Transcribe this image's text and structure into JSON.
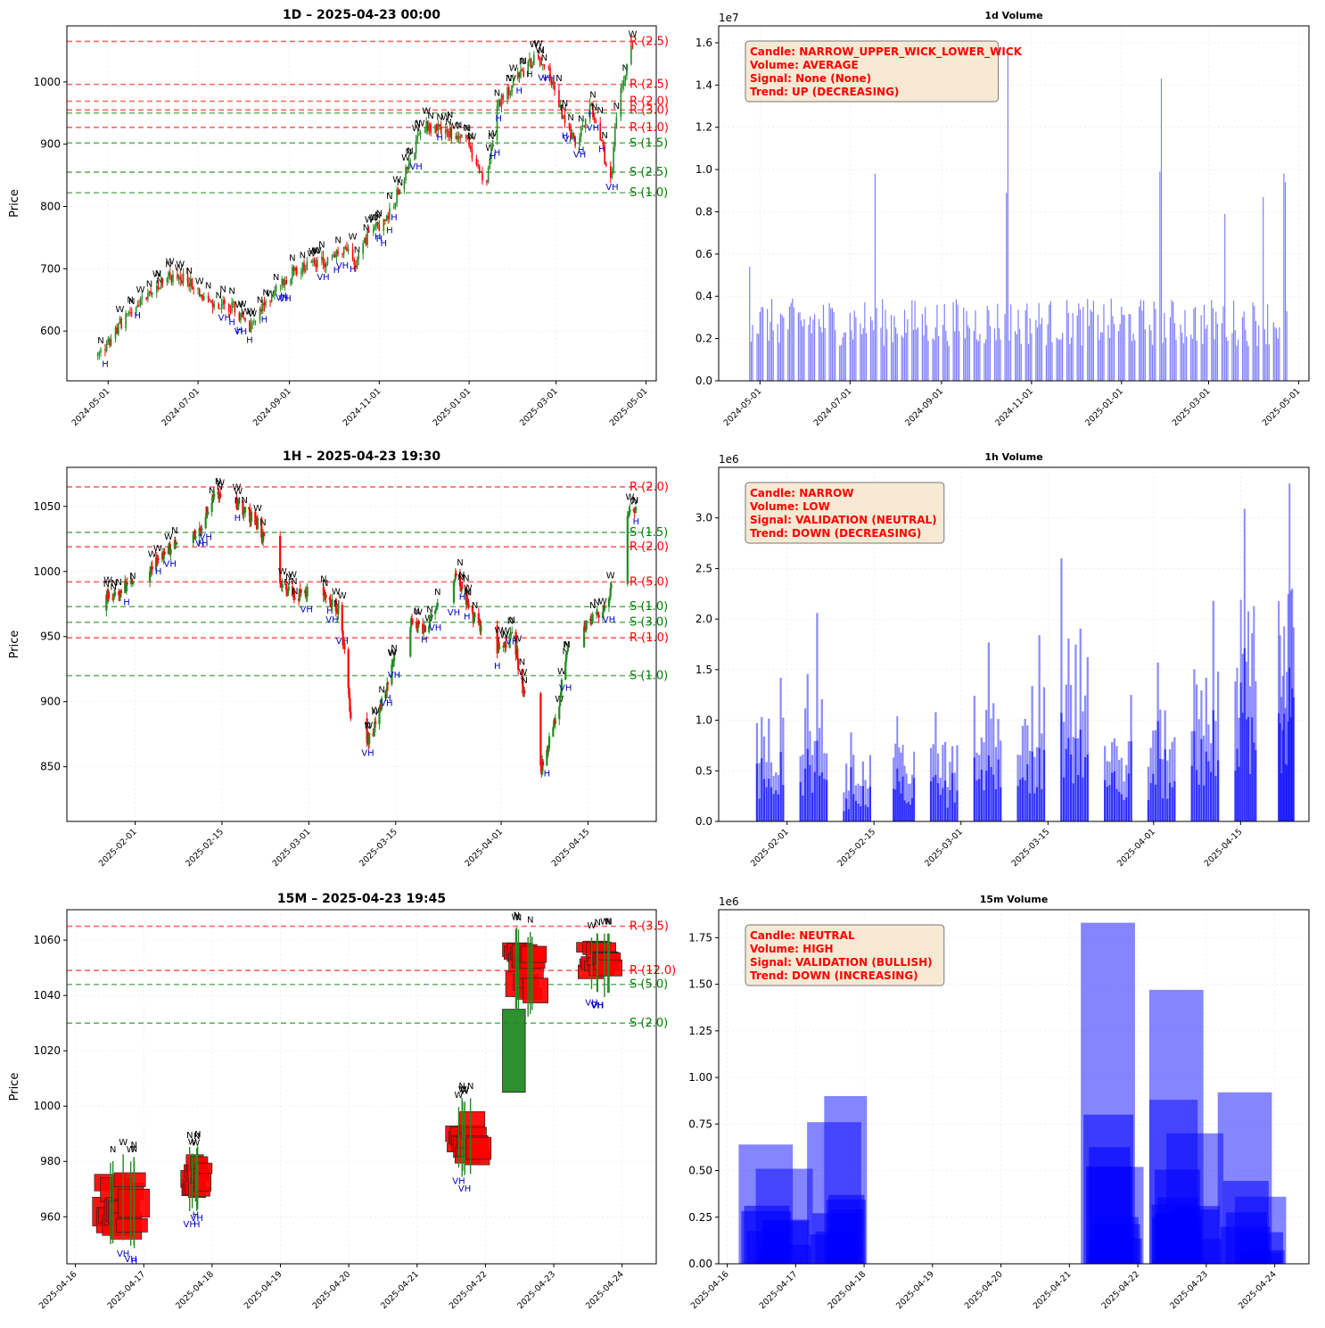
{
  "colors": {
    "up": "#228b22",
    "down": "#ff0000",
    "volume": "#0000ff",
    "resistance": "#ff0000",
    "support": "#008000",
    "label_w": "#000000",
    "label_h": "#0000cc",
    "infobox_bg": "#f7e9d3",
    "infobox_text": "#ff0000"
  },
  "chart_data": [
    {
      "type": "candlestick",
      "title": "1D – 2025-04-23 00:00",
      "ylabel": "Price",
      "ylim": [
        520,
        1090
      ],
      "xlim": [
        "2024-04-03",
        "2025-05-08"
      ],
      "yticks": [
        "600",
        "700",
        "800",
        "900",
        "1000"
      ],
      "xticks": [
        "2024-05-01",
        "2024-07-01",
        "2024-09-01",
        "2024-11-01",
        "2025-01-01",
        "2025-03-01",
        "2025-05-01"
      ],
      "price_path": {
        "dates": [
          "2024-04-24",
          "2024-05-01",
          "2024-05-10",
          "2024-05-25",
          "2024-06-10",
          "2024-06-25",
          "2024-07-10",
          "2024-07-25",
          "2024-08-05",
          "2024-08-20",
          "2024-09-05",
          "2024-09-25",
          "2024-10-10",
          "2024-10-15",
          "2024-10-25",
          "2024-11-05",
          "2024-11-20",
          "2024-12-01",
          "2024-12-15",
          "2024-12-30",
          "2025-01-05",
          "2025-01-13",
          "2025-01-20",
          "2025-02-01",
          "2025-02-15",
          "2025-02-25",
          "2025-03-05",
          "2025-03-15",
          "2025-03-25",
          "2025-04-07",
          "2025-04-12",
          "2025-04-22"
        ],
        "close": [
          560,
          580,
          615,
          650,
          690,
          680,
          640,
          640,
          600,
          660,
          700,
          710,
          730,
          700,
          760,
          775,
          860,
          930,
          920,
          910,
          870,
          840,
          960,
          1000,
          1040,
          1010,
          950,
          900,
          960,
          840,
          970,
          1060
        ]
      },
      "levels": [
        {
          "label": "R (2.5)",
          "price": 1065,
          "kind": "R"
        },
        {
          "label": "R (2.5)",
          "price": 996,
          "kind": "R"
        },
        {
          "label": "R (2.0)",
          "price": 969,
          "kind": "R"
        },
        {
          "label": "R (3.0)",
          "price": 955,
          "kind": "R"
        },
        {
          "label": "",
          "price": 950,
          "kind": "S"
        },
        {
          "label": "R (1.0)",
          "price": 927,
          "kind": "R"
        },
        {
          "label": "S (1.5)",
          "price": 902,
          "kind": "S"
        },
        {
          "label": "S (2.5)",
          "price": 855,
          "kind": "S"
        },
        {
          "label": "S (1.0)",
          "price": 822,
          "kind": "S"
        }
      ]
    },
    {
      "type": "bar",
      "title": "1d Volume",
      "scale_label": "1e7",
      "ylim": [
        0,
        1.68
      ],
      "yticks": [
        "0.0",
        "0.2",
        "0.4",
        "0.6",
        "0.8",
        "1.0",
        "1.2",
        "1.4",
        "1.6"
      ],
      "xlim": [
        "2024-04-03",
        "2025-05-08"
      ],
      "xticks": [
        "2024-05-01",
        "2024-07-01",
        "2024-09-01",
        "2024-11-01",
        "2025-01-01",
        "2025-03-01",
        "2025-05-01"
      ],
      "range": [
        "2024-04-24",
        "2025-04-23"
      ],
      "base_level": 0.3,
      "spikes": [
        {
          "date": "2024-04-24",
          "value": 0.54
        },
        {
          "date": "2024-07-18",
          "value": 0.98
        },
        {
          "date": "2024-10-15",
          "value": 0.89
        },
        {
          "date": "2024-10-16",
          "value": 1.56
        },
        {
          "date": "2025-01-27",
          "value": 0.99
        },
        {
          "date": "2025-01-28",
          "value": 1.43
        },
        {
          "date": "2025-03-12",
          "value": 0.79
        },
        {
          "date": "2025-04-07",
          "value": 0.87
        },
        {
          "date": "2025-04-21",
          "value": 0.98
        },
        {
          "date": "2025-04-22",
          "value": 0.94
        }
      ],
      "infobox": [
        "Candle: NARROW_UPPER_WICK_LOWER_WICK",
        "Volume: AVERAGE",
        "Signal: None (None)",
        "Trend: UP (DECREASING)"
      ]
    },
    {
      "type": "candlestick",
      "title": "1H – 2025-04-23 19:30",
      "ylabel": "Price",
      "ylim": [
        808,
        1080
      ],
      "xlim": [
        "2025-01-21",
        "2025-04-26"
      ],
      "yticks": [
        "850",
        "900",
        "950",
        "1000",
        "1050"
      ],
      "xticks": [
        "2025-02-01",
        "2025-02-15",
        "2025-03-01",
        "2025-03-15",
        "2025-04-01",
        "2025-04-15"
      ],
      "price_path": {
        "dates": [
          "2025-01-25",
          "2025-01-29",
          "2025-02-03",
          "2025-02-07",
          "2025-02-11",
          "2025-02-14",
          "2025-02-18",
          "2025-02-21",
          "2025-02-24",
          "2025-02-27",
          "2025-03-02",
          "2025-03-06",
          "2025-03-08",
          "2025-03-11",
          "2025-03-14",
          "2025-03-17",
          "2025-03-20",
          "2025-03-24",
          "2025-03-27",
          "2025-03-31",
          "2025-04-03",
          "2025-04-07",
          "2025-04-10",
          "2025-04-12",
          "2025-04-15",
          "2025-04-18",
          "2025-04-22",
          "2025-04-23"
        ],
        "close": [
          970,
          985,
          1000,
          1020,
          1030,
          1060,
          1050,
          1035,
          990,
          980,
          990,
          970,
          880,
          870,
          920,
          960,
          955,
          1000,
          970,
          940,
          950,
          840,
          890,
          950,
          960,
          975,
          1050,
          1045
        ]
      },
      "levels": [
        {
          "label": "R (2.0)",
          "price": 1065,
          "kind": "R"
        },
        {
          "label": "S (1.5)",
          "price": 1030,
          "kind": "S"
        },
        {
          "label": "R (2.0)",
          "price": 1019,
          "kind": "R"
        },
        {
          "label": "R (5.0)",
          "price": 992,
          "kind": "R"
        },
        {
          "label": "S (1.0)",
          "price": 973,
          "kind": "S"
        },
        {
          "label": "S (3.0)",
          "price": 961,
          "kind": "S"
        },
        {
          "label": "R (1.0)",
          "price": 949,
          "kind": "R"
        },
        {
          "label": "S (1.0)",
          "price": 920,
          "kind": "S"
        }
      ]
    },
    {
      "type": "bar",
      "title": "1h Volume",
      "scale_label": "1e6",
      "ylim": [
        0,
        3.5
      ],
      "yticks": [
        "0.0",
        "0.5",
        "1.0",
        "1.5",
        "2.0",
        "2.5",
        "3.0"
      ],
      "xlim": [
        "2025-01-21",
        "2025-04-26"
      ],
      "xticks": [
        "2025-02-01",
        "2025-02-15",
        "2025-03-01",
        "2025-03-15",
        "2025-04-01",
        "2025-04-15"
      ],
      "sessions": [
        {
          "start": "2025-01-27",
          "end": "2025-01-31",
          "peak": 1.42
        },
        {
          "start": "2025-02-03",
          "end": "2025-02-07",
          "peak": 2.06
        },
        {
          "start": "2025-02-10",
          "end": "2025-02-14",
          "peak": 0.88
        },
        {
          "start": "2025-02-18",
          "end": "2025-02-21",
          "peak": 1.04
        },
        {
          "start": "2025-02-24",
          "end": "2025-02-28",
          "peak": 1.08
        },
        {
          "start": "2025-03-03",
          "end": "2025-03-07",
          "peak": 1.77
        },
        {
          "start": "2025-03-10",
          "end": "2025-03-14",
          "peak": 1.84
        },
        {
          "start": "2025-03-17",
          "end": "2025-03-21",
          "peak": 2.6
        },
        {
          "start": "2025-03-24",
          "end": "2025-03-28",
          "peak": 1.25
        },
        {
          "start": "2025-03-31",
          "end": "2025-04-04",
          "peak": 1.57
        },
        {
          "start": "2025-04-07",
          "end": "2025-04-11",
          "peak": 2.18
        },
        {
          "start": "2025-04-14",
          "end": "2025-04-17",
          "peak": 3.09
        },
        {
          "start": "2025-04-21",
          "end": "2025-04-23",
          "peak": 3.34
        }
      ],
      "infobox": [
        "Candle: NARROW",
        "Volume: LOW",
        "Signal: VALIDATION (NEUTRAL)",
        "Trend: DOWN (DECREASING)"
      ]
    },
    {
      "type": "candlestick",
      "title": "15M – 2025-04-23 19:45",
      "ylabel": "Price",
      "ylim": [
        943,
        1071
      ],
      "xlim": [
        "2025-04-15 21:00",
        "2025-04-24 12:00"
      ],
      "yticks": [
        "960",
        "980",
        "1000",
        "1020",
        "1040",
        "1060"
      ],
      "xticks": [
        "2025-04-16",
        "2025-04-17",
        "2025-04-18",
        "2025-04-19",
        "2025-04-20",
        "2025-04-21",
        "2025-04-22",
        "2025-04-23",
        "2025-04-24"
      ],
      "clusters": [
        {
          "start": "2025-04-16 06:00",
          "end": "2025-04-17 02:00",
          "low": 952,
          "high": 979
        },
        {
          "start": "2025-04-17 13:00",
          "end": "2025-04-18 00:00",
          "low": 966,
          "high": 982
        },
        {
          "start": "2025-04-21 10:00",
          "end": "2025-04-22 02:00",
          "low": 978,
          "high": 999
        },
        {
          "start": "2025-04-22 06:00",
          "end": "2025-04-22 22:00",
          "low": 1036,
          "high": 1061
        },
        {
          "start": "2025-04-23 08:00",
          "end": "2025-04-23 23:59",
          "low": 1043,
          "high": 1060
        }
      ],
      "big_candle": {
        "start": "2025-04-22 06:00",
        "end": "2025-04-22 14:00",
        "open": 1005,
        "close": 1035
      },
      "levels": [
        {
          "label": "R (3.5)",
          "price": 1065,
          "kind": "R"
        },
        {
          "label": "R (12.0)",
          "price": 1049,
          "kind": "R"
        },
        {
          "label": "S (5.0)",
          "price": 1044,
          "kind": "S"
        },
        {
          "label": "S (2.0)",
          "price": 1030,
          "kind": "S"
        }
      ]
    },
    {
      "type": "bar",
      "title": "15m Volume",
      "scale_label": "1e6",
      "ylim": [
        0,
        1.9
      ],
      "yticks": [
        "0.00",
        "0.25",
        "0.50",
        "0.75",
        "1.00",
        "1.25",
        "1.50",
        "1.75"
      ],
      "xlim": [
        "2025-04-15 21:00",
        "2025-04-24 12:00"
      ],
      "xticks": [
        "2025-04-16",
        "2025-04-17",
        "2025-04-18",
        "2025-04-19",
        "2025-04-20",
        "2025-04-21",
        "2025-04-22",
        "2025-04-23",
        "2025-04-24"
      ],
      "bars": [
        {
          "start": "2025-04-16 04:00",
          "end": "2025-04-16 23:00",
          "value": 0.64
        },
        {
          "start": "2025-04-16 10:00",
          "end": "2025-04-17 06:00",
          "value": 0.51
        },
        {
          "start": "2025-04-17 04:00",
          "end": "2025-04-17 23:00",
          "value": 0.76
        },
        {
          "start": "2025-04-17 10:00",
          "end": "2025-04-18 01:00",
          "value": 0.9
        },
        {
          "start": "2025-04-21 04:00",
          "end": "2025-04-21 23:00",
          "value": 1.83
        },
        {
          "start": "2025-04-21 06:00",
          "end": "2025-04-22 02:00",
          "value": 0.52
        },
        {
          "start": "2025-04-22 04:00",
          "end": "2025-04-22 23:00",
          "value": 1.47
        },
        {
          "start": "2025-04-22 04:00",
          "end": "2025-04-22 21:00",
          "value": 0.88
        },
        {
          "start": "2025-04-22 10:00",
          "end": "2025-04-23 06:00",
          "value": 0.7
        },
        {
          "start": "2025-04-23 04:00",
          "end": "2025-04-23 23:00",
          "value": 0.92
        },
        {
          "start": "2025-04-23 10:00",
          "end": "2025-04-24 04:00",
          "value": 0.36
        }
      ],
      "infobox": [
        "Candle: NEUTRAL",
        "Volume: HIGH",
        "Signal: VALIDATION (BULLISH)",
        "Trend: DOWN (INCREASING)"
      ]
    }
  ]
}
